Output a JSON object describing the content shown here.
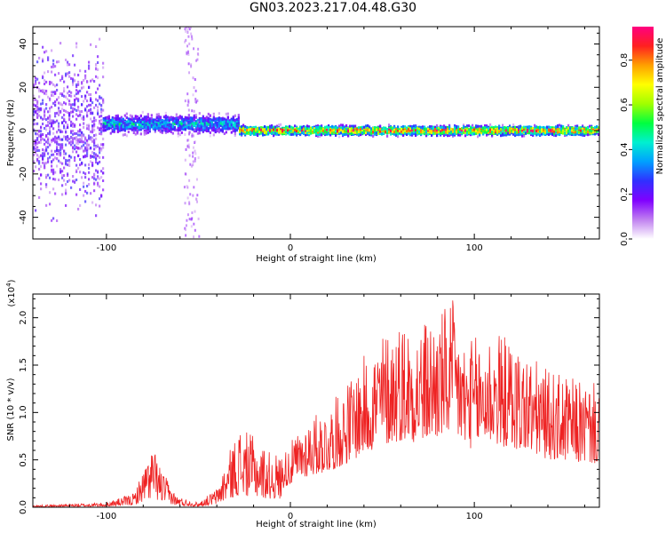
{
  "title": "GN03.2023.217.04.48.G30",
  "chart_data": [
    {
      "type": "heatmap",
      "xlabel": "Height of straight line (km)",
      "ylabel": "Frequency (Hz)",
      "xlim": [
        -140,
        168
      ],
      "ylim": [
        -50,
        48
      ],
      "xticks": [
        -100,
        0,
        100
      ],
      "yticks": [
        -40,
        -20,
        0,
        20,
        40
      ],
      "colorbar": {
        "label": "Normalized spectral amplitude",
        "range": [
          0,
          0.95
        ],
        "ticks": [
          0.0,
          0.2,
          0.4,
          0.6,
          0.8
        ],
        "colors": [
          "#ffffff",
          "#c080f0",
          "#8000ff",
          "#3030ff",
          "#00a0ff",
          "#00f0d0",
          "#00ff40",
          "#a0ff00",
          "#ffff00",
          "#ffa000",
          "#ff2020",
          "#ff0080"
        ]
      },
      "regions": [
        {
          "x": [
            -140,
            -102
          ],
          "description_level": 0.25,
          "freq_center": 0,
          "spread": 48
        },
        {
          "x": [
            -102,
            -28
          ],
          "description_level": 0.45,
          "freq_center": 3,
          "spread": 6
        },
        {
          "x": [
            -28,
            168
          ],
          "description_level": 0.9,
          "freq_center": 0,
          "spread": 3
        }
      ]
    },
    {
      "type": "line",
      "xlabel": "Height of straight line (km)",
      "ylabel": "SNR (10 * v/v)",
      "yscale_label": "(x10",
      "yscale_exp": "4",
      "xlim": [
        -140,
        168
      ],
      "ylim": [
        0,
        2.25
      ],
      "xticks": [
        -100,
        0,
        100
      ],
      "yticks": [
        0.0,
        0.5,
        1.0,
        1.5,
        2.0
      ],
      "series": [
        {
          "color": "#ee2222",
          "envelope": [
            [
              -140,
              0.02
            ],
            [
              -100,
              0.05
            ],
            [
              -85,
              0.15
            ],
            [
              -75,
              0.65
            ],
            [
              -70,
              0.4
            ],
            [
              -62,
              0.12
            ],
            [
              -50,
              0.05
            ],
            [
              -40,
              0.2
            ],
            [
              -33,
              0.6
            ],
            [
              -28,
              0.85
            ],
            [
              -20,
              0.75
            ],
            [
              -12,
              0.6
            ],
            [
              -5,
              0.55
            ],
            [
              10,
              0.95
            ],
            [
              20,
              1.05
            ],
            [
              30,
              1.3
            ],
            [
              40,
              1.6
            ],
            [
              50,
              1.85
            ],
            [
              60,
              2.0
            ],
            [
              70,
              1.95
            ],
            [
              80,
              2.05
            ],
            [
              88,
              2.2
            ],
            [
              95,
              1.75
            ],
            [
              110,
              1.9
            ],
            [
              125,
              1.7
            ],
            [
              140,
              1.45
            ],
            [
              155,
              1.35
            ],
            [
              168,
              1.3
            ]
          ]
        }
      ]
    }
  ]
}
